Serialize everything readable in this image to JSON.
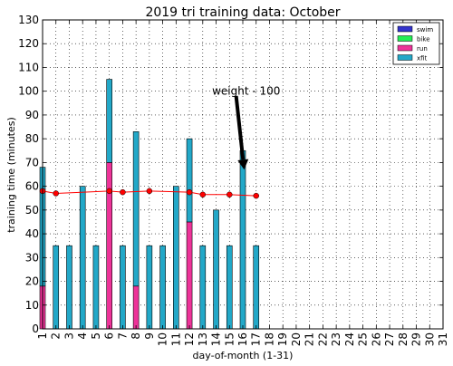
{
  "chart_data": {
    "type": "bar",
    "title": "2019 tri training data: October",
    "xlabel": "day-of-month (1-31)",
    "ylabel": "training time (minutes)",
    "xlim": [
      1,
      31
    ],
    "ylim": [
      0,
      130
    ],
    "x_ticks": [
      1,
      2,
      3,
      4,
      5,
      6,
      7,
      8,
      9,
      10,
      11,
      12,
      13,
      14,
      15,
      16,
      17,
      18,
      19,
      20,
      21,
      22,
      23,
      24,
      25,
      26,
      27,
      28,
      29,
      30,
      31
    ],
    "y_ticks": [
      0,
      10,
      20,
      30,
      40,
      50,
      60,
      70,
      80,
      90,
      100,
      110,
      120,
      130
    ],
    "stacked": true,
    "grid": true,
    "legend_position": "top-right",
    "colors": {
      "swim": "#3333cc",
      "bike": "#22ee55",
      "run": "#ee3399",
      "xfit": "#22a8c8",
      "weight_line": "#ff0000"
    },
    "series": [
      {
        "name": "swim",
        "values": [
          0,
          0,
          0,
          0,
          0,
          0,
          0,
          0,
          0,
          0,
          0,
          0,
          0,
          0,
          0,
          0,
          0
        ]
      },
      {
        "name": "bike",
        "values": [
          0,
          0,
          0,
          0,
          0,
          0,
          0,
          0,
          0,
          0,
          0,
          0,
          0,
          0,
          0,
          0,
          0
        ]
      },
      {
        "name": "run",
        "values": [
          18,
          0,
          0,
          0,
          0,
          70,
          0,
          18,
          0,
          0,
          0,
          45,
          0,
          0,
          0,
          0,
          0
        ]
      },
      {
        "name": "xfit",
        "values": [
          50,
          35,
          35,
          60,
          35,
          35,
          35,
          65,
          35,
          35,
          60,
          35,
          35,
          50,
          35,
          75,
          35
        ]
      }
    ],
    "days": [
      1,
      2,
      3,
      4,
      5,
      6,
      7,
      8,
      9,
      10,
      11,
      12,
      13,
      14,
      15,
      16,
      17
    ],
    "weight_line": {
      "label": "weight - 100",
      "points": [
        [
          1,
          58
        ],
        [
          2,
          57
        ],
        [
          6,
          58
        ],
        [
          7,
          57.5
        ],
        [
          9,
          58
        ],
        [
          12,
          57.5
        ],
        [
          13,
          56.5
        ],
        [
          15,
          56.5
        ],
        [
          17,
          56
        ]
      ]
    },
    "annotation": {
      "text": "weight - 100",
      "text_at": [
        13.7,
        100
      ],
      "arrow_tail": [
        15.5,
        98
      ],
      "arrow_head": [
        16.1,
        67
      ]
    }
  }
}
